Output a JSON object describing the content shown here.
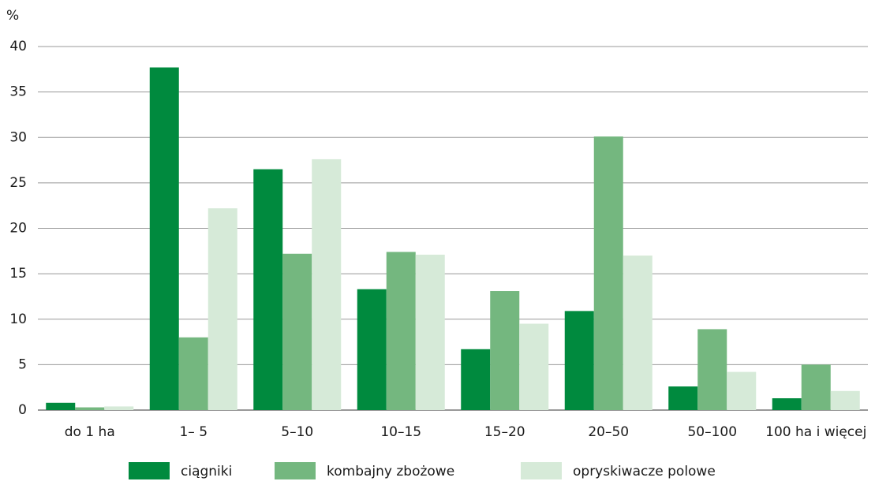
{
  "chart_data": {
    "type": "bar",
    "y_label": "%",
    "categories": [
      "do 1 ha",
      "1– 5",
      "5–10",
      "10–15",
      "15–20",
      "20–50",
      "50–100",
      "100 ha i więcej"
    ],
    "series": [
      {
        "name": "ciągniki",
        "color": "#008a3e",
        "values": [
          0.8,
          37.7,
          26.5,
          13.3,
          6.7,
          10.9,
          2.6,
          1.3
        ]
      },
      {
        "name": "kombajny zbożowe",
        "color": "#74b77f",
        "values": [
          0.3,
          8.0,
          17.2,
          17.4,
          13.1,
          30.1,
          8.9,
          5.0
        ]
      },
      {
        "name": "opryskiwacze polowe",
        "color": "#d6ead8",
        "values": [
          0.4,
          22.2,
          27.6,
          17.1,
          9.5,
          17.0,
          4.2,
          2.1
        ]
      }
    ],
    "ylim": [
      0,
      40
    ],
    "yticks": [
      0,
      5,
      10,
      15,
      20,
      25,
      30,
      35,
      40
    ],
    "grid": true,
    "legend": "bottom"
  }
}
